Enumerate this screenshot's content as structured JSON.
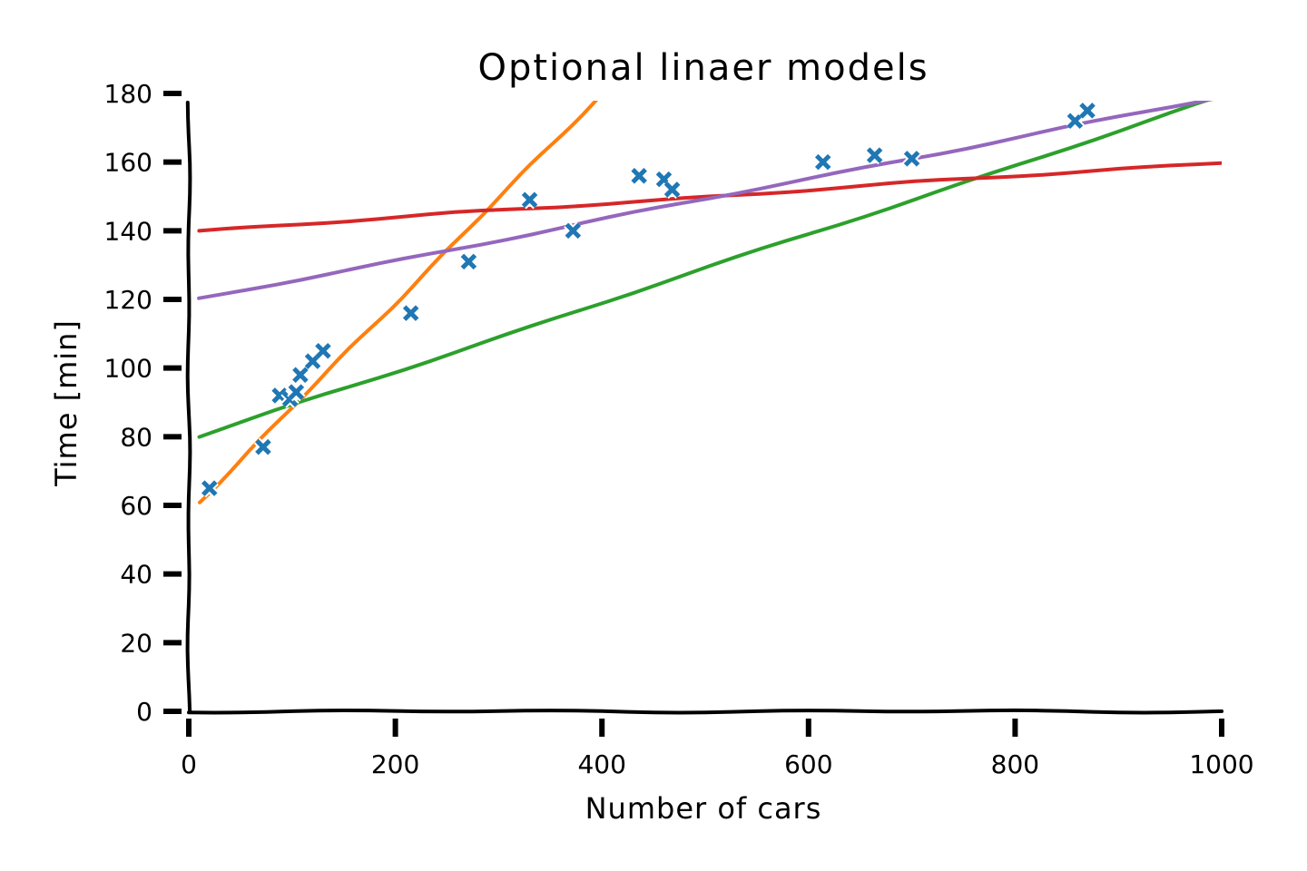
{
  "chart_data": {
    "type": "line",
    "title": "Optional linaer models",
    "xlabel": "Number of cars",
    "ylabel": "Time [min]",
    "xlim": [
      0,
      1000
    ],
    "ylim": [
      0,
      180
    ],
    "xticks": [
      0,
      200,
      400,
      600,
      800,
      1000
    ],
    "yticks": [
      0,
      20,
      40,
      60,
      80,
      100,
      120,
      140,
      160,
      180
    ],
    "grid": false,
    "colors": {
      "points": "#1f77b4",
      "orange": "#ff7f0e",
      "green": "#2ca02c",
      "red": "#d62728",
      "purple": "#9467bd"
    },
    "points": {
      "x": [
        20,
        72,
        88,
        98,
        104,
        108,
        120,
        130,
        215,
        271,
        330,
        372,
        436,
        460,
        468,
        614,
        664,
        700,
        858,
        870
      ],
      "y": [
        65,
        77,
        92,
        91,
        93,
        98,
        102,
        105,
        116,
        131,
        149,
        140,
        156,
        155,
        152,
        160,
        162,
        161,
        172,
        175
      ]
    },
    "series": [
      {
        "color": "orange",
        "x": [
          10,
          400
        ],
        "y": [
          61,
          180
        ]
      },
      {
        "color": "green",
        "x": [
          10,
          1000
        ],
        "y": [
          80,
          179
        ]
      },
      {
        "color": "red",
        "x": [
          10,
          1000
        ],
        "y": [
          140,
          160
        ]
      },
      {
        "color": "purple",
        "x": [
          10,
          1000
        ],
        "y": [
          120,
          179
        ]
      }
    ]
  }
}
